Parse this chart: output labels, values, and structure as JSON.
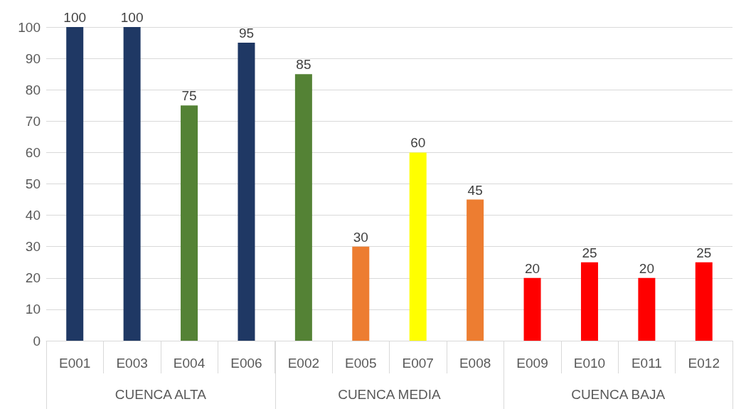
{
  "chart_data": {
    "type": "bar",
    "categories": [
      "E001",
      "E003",
      "E004",
      "E006",
      "E002",
      "E005",
      "E007",
      "E008",
      "E009",
      "E010",
      "E011",
      "E012"
    ],
    "values": [
      100,
      100,
      75,
      95,
      85,
      30,
      60,
      45,
      20,
      25,
      20,
      25
    ],
    "colors": [
      "#1f3864",
      "#1f3864",
      "#548235",
      "#1f3864",
      "#548235",
      "#ed7d31",
      "#ffff00",
      "#ed7d31",
      "#ff0000",
      "#ff0000",
      "#ff0000",
      "#ff0000"
    ],
    "ylim": [
      0,
      100
    ],
    "yticks": [
      0,
      10,
      20,
      30,
      40,
      50,
      60,
      70,
      80,
      90,
      100
    ],
    "grid": "y",
    "data_labels": true,
    "annotations": [
      "CUENCA ALTA",
      "CUENCA MEDIA",
      "CUENCA BAJA"
    ]
  }
}
